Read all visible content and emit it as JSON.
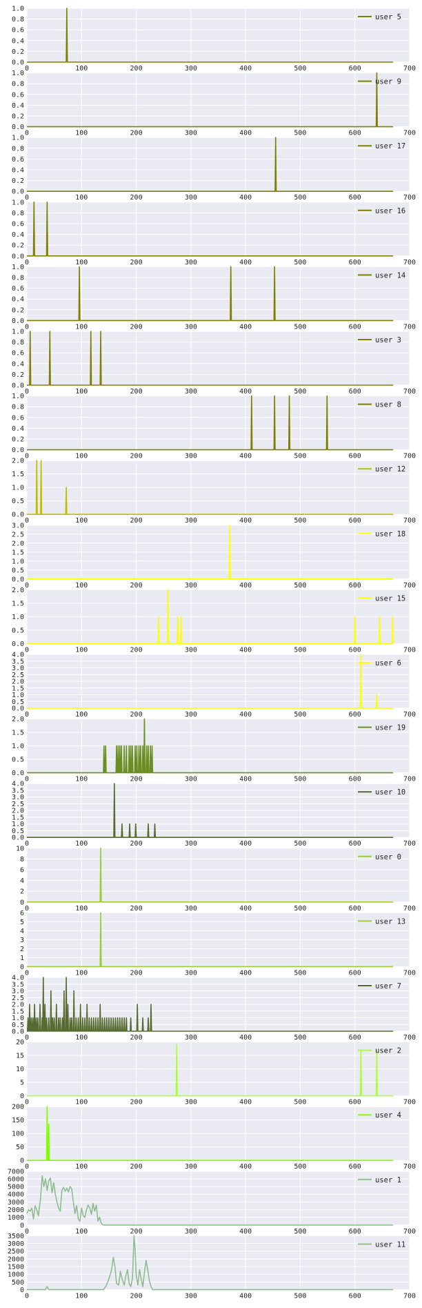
{
  "chart_data": [
    {
      "type": "line",
      "name": "user 5",
      "color": "#808000",
      "xlim": [
        0,
        700
      ],
      "ylim": [
        0,
        1
      ],
      "yticks": [
        "0.0",
        "0.2",
        "0.4",
        "0.6",
        "0.8",
        "1.0"
      ],
      "xticks": [
        "0",
        "100",
        "200",
        "300",
        "400",
        "500",
        "600",
        "700"
      ],
      "spikes": [
        [
          73,
          1
        ]
      ],
      "legend": "top-right"
    },
    {
      "type": "line",
      "name": "user 9",
      "color": "#808000",
      "xlim": [
        0,
        700
      ],
      "ylim": [
        0,
        1
      ],
      "yticks": [
        "0.0",
        "0.2",
        "0.4",
        "0.6",
        "0.8",
        "1.0"
      ],
      "xticks": [
        "0",
        "100",
        "200",
        "300",
        "400",
        "500",
        "600",
        "700"
      ],
      "spikes": [
        [
          640,
          1
        ]
      ],
      "legend": "top-right"
    },
    {
      "type": "line",
      "name": "user 17",
      "color": "#808000",
      "xlim": [
        0,
        700
      ],
      "ylim": [
        0,
        1
      ],
      "yticks": [
        "0.0",
        "0.2",
        "0.4",
        "0.6",
        "0.8",
        "1.0"
      ],
      "xticks": [
        "0",
        "100",
        "200",
        "300",
        "400",
        "500",
        "600",
        "700"
      ],
      "spikes": [
        [
          455,
          1
        ]
      ],
      "legend": "top-right"
    },
    {
      "type": "line",
      "name": "user 16",
      "color": "#808000",
      "xlim": [
        0,
        700
      ],
      "ylim": [
        0,
        1
      ],
      "yticks": [
        "0.0",
        "0.2",
        "0.4",
        "0.6",
        "0.8",
        "1.0"
      ],
      "xticks": [
        "0",
        "100",
        "200",
        "300",
        "400",
        "500",
        "600",
        "700"
      ],
      "spikes": [
        [
          13,
          1
        ],
        [
          37,
          1
        ]
      ],
      "legend": "top-right"
    },
    {
      "type": "line",
      "name": "user 14",
      "color": "#808000",
      "xlim": [
        0,
        700
      ],
      "ylim": [
        0,
        1
      ],
      "yticks": [
        "0.0",
        "0.2",
        "0.4",
        "0.6",
        "0.8",
        "1.0"
      ],
      "xticks": [
        "0",
        "100",
        "200",
        "300",
        "400",
        "500",
        "600",
        "700"
      ],
      "spikes": [
        [
          96,
          1
        ],
        [
          373,
          1
        ],
        [
          453,
          1
        ]
      ],
      "legend": "top-right"
    },
    {
      "type": "line",
      "name": "user 3",
      "color": "#808000",
      "xlim": [
        0,
        700
      ],
      "ylim": [
        0,
        1
      ],
      "yticks": [
        "0.0",
        "0.2",
        "0.4",
        "0.6",
        "0.8",
        "1.0"
      ],
      "xticks": [
        "0",
        "100",
        "200",
        "300",
        "400",
        "500",
        "600",
        "700"
      ],
      "spikes": [
        [
          6,
          1
        ],
        [
          42,
          1
        ],
        [
          117,
          1
        ],
        [
          135,
          1
        ]
      ],
      "legend": "top-right"
    },
    {
      "type": "line",
      "name": "user 8",
      "color": "#808000",
      "xlim": [
        0,
        700
      ],
      "ylim": [
        0,
        1
      ],
      "yticks": [
        "0.0",
        "0.2",
        "0.4",
        "0.6",
        "0.8",
        "1.0"
      ],
      "xticks": [
        "0",
        "100",
        "200",
        "300",
        "400",
        "500",
        "600",
        "700"
      ],
      "spikes": [
        [
          411,
          1
        ],
        [
          453,
          1
        ],
        [
          480,
          1
        ],
        [
          549,
          1
        ]
      ],
      "legend": "top-right"
    },
    {
      "type": "line",
      "name": "user 12",
      "color": "#bfbf00",
      "xlim": [
        0,
        700
      ],
      "ylim": [
        0,
        2
      ],
      "yticks": [
        "0.0",
        "0.5",
        "1.0",
        "1.5",
        "2.0"
      ],
      "xticks": [
        "0",
        "100",
        "200",
        "300",
        "400",
        "500",
        "600",
        "700"
      ],
      "spikes": [
        [
          18,
          2
        ],
        [
          26,
          2
        ],
        [
          72,
          1
        ]
      ],
      "legend": "top-right"
    },
    {
      "type": "line",
      "name": "user 18",
      "color": "#ffff00",
      "xlim": [
        0,
        700
      ],
      "ylim": [
        0,
        3
      ],
      "yticks": [
        "0.0",
        "0.5",
        "1.0",
        "1.5",
        "2.0",
        "2.5",
        "3.0"
      ],
      "xticks": [
        "0",
        "100",
        "200",
        "300",
        "400",
        "500",
        "600",
        "700"
      ],
      "spikes": [
        [
          371,
          3
        ]
      ],
      "legend": "top-right"
    },
    {
      "type": "line",
      "name": "user 15",
      "color": "#ffff00",
      "xlim": [
        0,
        700
      ],
      "ylim": [
        0,
        2
      ],
      "yticks": [
        "0.0",
        "0.5",
        "1.0",
        "1.5",
        "2.0"
      ],
      "xticks": [
        "0",
        "100",
        "200",
        "300",
        "400",
        "500",
        "600",
        "700"
      ],
      "spikes": [
        [
          241,
          1
        ],
        [
          258,
          2
        ],
        [
          276,
          1
        ],
        [
          282,
          1
        ],
        [
          600,
          1
        ],
        [
          645,
          1
        ],
        [
          669,
          1
        ]
      ],
      "legend": "top-right"
    },
    {
      "type": "line",
      "name": "user 6",
      "color": "#ffff00",
      "xlim": [
        0,
        700
      ],
      "ylim": [
        0,
        4
      ],
      "yticks": [
        "0.0",
        "0.5",
        "1.0",
        "1.5",
        "2.0",
        "2.5",
        "3.0",
        "3.5",
        "4.0"
      ],
      "xticks": [
        "0",
        "100",
        "200",
        "300",
        "400",
        "500",
        "600",
        "700"
      ],
      "spikes": [
        [
          611,
          4
        ],
        [
          640,
          1
        ]
      ],
      "legend": "top-right"
    },
    {
      "type": "line",
      "name": "user 19",
      "color": "#6b8e23",
      "xlim": [
        0,
        700
      ],
      "ylim": [
        0,
        2
      ],
      "yticks": [
        "0.0",
        "0.5",
        "1.0",
        "1.5",
        "2.0"
      ],
      "xticks": [
        "0",
        "100",
        "200",
        "300",
        "400",
        "500",
        "600",
        "700"
      ],
      "spikes": [
        [
          141,
          1
        ],
        [
          144,
          1
        ],
        [
          164,
          1
        ],
        [
          167,
          1
        ],
        [
          170,
          1
        ],
        [
          173,
          1
        ],
        [
          178,
          1
        ],
        [
          182,
          1
        ],
        [
          187,
          1
        ],
        [
          190,
          1
        ],
        [
          193,
          1
        ],
        [
          198,
          1
        ],
        [
          201,
          1
        ],
        [
          205,
          1
        ],
        [
          208,
          1
        ],
        [
          212,
          1
        ],
        [
          215,
          2
        ],
        [
          219,
          1
        ],
        [
          222,
          1
        ],
        [
          226,
          1
        ],
        [
          229,
          1
        ]
      ],
      "legend": "top-right"
    },
    {
      "type": "line",
      "name": "user 10",
      "color": "#556b2f",
      "xlim": [
        0,
        700
      ],
      "ylim": [
        0,
        4
      ],
      "yticks": [
        "0.0",
        "0.5",
        "1.0",
        "1.5",
        "2.0",
        "2.5",
        "3.0",
        "3.5",
        "4.0"
      ],
      "xticks": [
        "0",
        "100",
        "200",
        "300",
        "400",
        "500",
        "600",
        "700"
      ],
      "spikes": [
        [
          160,
          4
        ],
        [
          174,
          1
        ],
        [
          188,
          1
        ],
        [
          199,
          1
        ],
        [
          222,
          1
        ],
        [
          234,
          1
        ]
      ],
      "legend": "top-right"
    },
    {
      "type": "line",
      "name": "user 0",
      "color": "#9acd32",
      "xlim": [
        0,
        700
      ],
      "ylim": [
        0,
        10
      ],
      "yticks": [
        "0",
        "2",
        "4",
        "6",
        "8",
        "10"
      ],
      "xticks": [
        "0",
        "100",
        "200",
        "300",
        "400",
        "500",
        "600",
        "700"
      ],
      "spikes": [
        [
          135,
          10
        ]
      ],
      "legend": "top-right"
    },
    {
      "type": "line",
      "name": "user 13",
      "color": "#9acd32",
      "xlim": [
        0,
        700
      ],
      "ylim": [
        0,
        6
      ],
      "yticks": [
        "0",
        "1",
        "2",
        "3",
        "4",
        "5",
        "6"
      ],
      "xticks": [
        "0",
        "100",
        "200",
        "300",
        "400",
        "500",
        "600",
        "700"
      ],
      "spikes": [
        [
          135,
          6
        ]
      ],
      "legend": "top-right"
    },
    {
      "type": "line",
      "name": "user 7",
      "color": "#556b2f",
      "xlim": [
        0,
        700
      ],
      "ylim": [
        0,
        4
      ],
      "yticks": [
        "0.0",
        "0.5",
        "1.0",
        "1.5",
        "2.0",
        "2.5",
        "3.0",
        "3.5",
        "4.0"
      ],
      "xticks": [
        "0",
        "100",
        "200",
        "300",
        "400",
        "500",
        "600",
        "700"
      ],
      "spikes": [
        [
          2,
          1
        ],
        [
          5,
          2
        ],
        [
          8,
          1
        ],
        [
          11,
          1
        ],
        [
          14,
          2
        ],
        [
          17,
          1
        ],
        [
          20,
          1
        ],
        [
          24,
          2
        ],
        [
          28,
          1
        ],
        [
          30,
          4
        ],
        [
          33,
          2
        ],
        [
          36,
          1
        ],
        [
          40,
          1
        ],
        [
          44,
          3
        ],
        [
          47,
          1
        ],
        [
          50,
          1
        ],
        [
          54,
          2
        ],
        [
          58,
          1
        ],
        [
          61,
          1
        ],
        [
          65,
          1
        ],
        [
          68,
          3
        ],
        [
          72,
          4
        ],
        [
          75,
          2
        ],
        [
          79,
          1
        ],
        [
          82,
          1
        ],
        [
          86,
          3
        ],
        [
          90,
          1
        ],
        [
          94,
          1
        ],
        [
          98,
          2
        ],
        [
          102,
          1
        ],
        [
          106,
          1
        ],
        [
          110,
          2
        ],
        [
          114,
          1
        ],
        [
          118,
          1
        ],
        [
          122,
          1
        ],
        [
          126,
          1
        ],
        [
          130,
          1
        ],
        [
          134,
          2
        ],
        [
          138,
          1
        ],
        [
          142,
          1
        ],
        [
          146,
          1
        ],
        [
          150,
          1
        ],
        [
          154,
          1
        ],
        [
          158,
          1
        ],
        [
          162,
          1
        ],
        [
          166,
          1
        ],
        [
          170,
          1
        ],
        [
          174,
          1
        ],
        [
          178,
          1
        ],
        [
          182,
          1
        ],
        [
          190,
          1
        ],
        [
          202,
          2
        ],
        [
          212,
          1
        ],
        [
          222,
          1
        ],
        [
          227,
          2
        ]
      ],
      "legend": "top-right"
    },
    {
      "type": "line",
      "name": "user 2",
      "color": "#adff2f",
      "xlim": [
        0,
        700
      ],
      "ylim": [
        0,
        20
      ],
      "yticks": [
        "0",
        "5",
        "10",
        "15",
        "20"
      ],
      "xticks": [
        "0",
        "100",
        "200",
        "300",
        "400",
        "500",
        "600",
        "700"
      ],
      "spikes": [
        [
          274,
          19
        ],
        [
          611,
          17
        ],
        [
          640,
          17
        ]
      ],
      "legend": "top-right"
    },
    {
      "type": "line",
      "name": "user 4",
      "color": "#7fff00",
      "xlim": [
        0,
        700
      ],
      "ylim": [
        0,
        200
      ],
      "yticks": [
        "0",
        "50",
        "100",
        "150",
        "200"
      ],
      "xticks": [
        "0",
        "100",
        "200",
        "300",
        "400",
        "500",
        "600",
        "700"
      ],
      "spikes": [
        [
          37,
          200
        ],
        [
          40,
          135
        ]
      ],
      "legend": "top-right"
    },
    {
      "type": "line",
      "name": "user 1",
      "color": "#8fbc8f",
      "xlim": [
        0,
        700
      ],
      "ylim": [
        0,
        7000
      ],
      "yticks": [
        "0",
        "1000",
        "2000",
        "3000",
        "4000",
        "5000",
        "6000",
        "7000"
      ],
      "xticks": [
        "0",
        "100",
        "200",
        "300",
        "400",
        "500",
        "600",
        "700"
      ],
      "x": [
        0,
        3,
        6,
        9,
        12,
        15,
        18,
        21,
        25,
        28,
        31,
        34,
        37,
        40,
        43,
        46,
        49,
        52,
        55,
        58,
        61,
        64,
        67,
        70,
        73,
        76,
        79,
        82,
        85,
        88,
        91,
        94,
        97,
        100,
        103,
        106,
        109,
        112,
        115,
        118,
        121,
        124,
        127,
        130,
        133,
        136,
        140,
        150,
        200,
        300,
        400,
        500,
        600,
        670
      ],
      "y": [
        1500,
        2000,
        1800,
        2200,
        800,
        2500,
        2000,
        1200,
        3500,
        6400,
        5000,
        6000,
        4500,
        5800,
        6100,
        4200,
        5500,
        4000,
        3000,
        2200,
        1800,
        4500,
        4900,
        4400,
        4800,
        4300,
        5000,
        4700,
        3000,
        1500,
        2500,
        800,
        500,
        2200,
        1200,
        1000,
        2000,
        2600,
        2200,
        1400,
        2800,
        1800,
        2600,
        500,
        1000,
        200,
        0,
        0,
        0,
        0,
        0,
        0,
        0,
        0
      ],
      "legend": "top-right"
    },
    {
      "type": "line",
      "name": "user 11",
      "color": "#8fbc8f",
      "xlim": [
        0,
        700
      ],
      "ylim": [
        0,
        3500
      ],
      "yticks": [
        "0",
        "500",
        "1000",
        "1500",
        "2000",
        "2500",
        "3000",
        "3500"
      ],
      "xticks": [
        "0",
        "100",
        "200",
        "300",
        "400",
        "500",
        "600",
        "700"
      ],
      "x": [
        0,
        30,
        34,
        37,
        40,
        90,
        140,
        145,
        150,
        155,
        158,
        161,
        164,
        168,
        171,
        174,
        178,
        181,
        184,
        187,
        190,
        193,
        196,
        198,
        200,
        203,
        206,
        209,
        212,
        215,
        218,
        221,
        224,
        227,
        230,
        235,
        300,
        400,
        500,
        600,
        670
      ],
      "y": [
        0,
        0,
        0,
        200,
        0,
        0,
        0,
        250,
        700,
        1300,
        2100,
        1500,
        400,
        300,
        1200,
        700,
        300,
        900,
        1300,
        400,
        200,
        700,
        3500,
        2600,
        900,
        300,
        1300,
        700,
        200,
        1100,
        1900,
        1300,
        600,
        200,
        0,
        0,
        0,
        0,
        0,
        0,
        0
      ],
      "legend": "top-right"
    }
  ]
}
